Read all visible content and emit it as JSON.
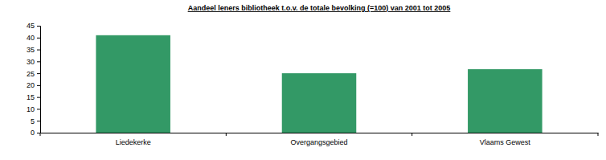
{
  "chart_data": {
    "type": "bar",
    "title": "Aandeel leners bibliotheek t.o.v. de totale bevolking (=100) van 2001 tot 2005",
    "categories": [
      "Liedekerke",
      "Overgangsgebied",
      "Vlaams Gewest"
    ],
    "values": [
      41,
      25,
      26.7
    ],
    "color": "#339966",
    "ylim": [
      0,
      45
    ],
    "yticks": [
      0,
      5,
      10,
      15,
      20,
      25,
      30,
      35,
      40,
      45
    ],
    "grid": false
  }
}
